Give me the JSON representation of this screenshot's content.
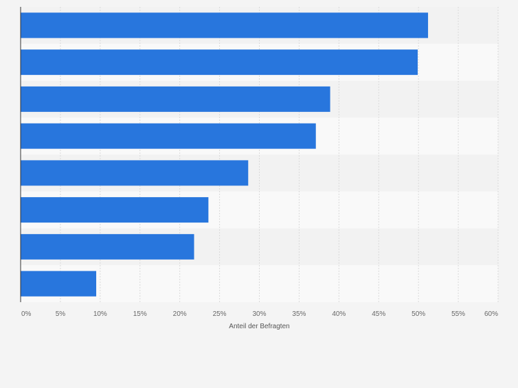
{
  "chart_data": {
    "type": "bar",
    "orientation": "horizontal",
    "title": "",
    "xlabel": "Anteil der Befragten",
    "ylabel": "",
    "categories": [
      "",
      "",
      "",
      "",
      "",
      "",
      "",
      ""
    ],
    "values": [
      51.2,
      49.9,
      38.9,
      37.1,
      28.6,
      23.6,
      21.8,
      9.5
    ],
    "xlim": [
      0,
      60
    ],
    "x_ticks": [
      "0%",
      "5%",
      "10%",
      "15%",
      "20%",
      "25%",
      "30%",
      "35%",
      "40%",
      "45%",
      "50%",
      "55%",
      "60%"
    ],
    "grid": true,
    "legend": "none",
    "colors": {
      "bar": "#2876dd",
      "band_dark": "#f2f2f2",
      "band_light": "#f9f9f9",
      "grid": "#d9d9d9",
      "axis": "#333333"
    }
  }
}
